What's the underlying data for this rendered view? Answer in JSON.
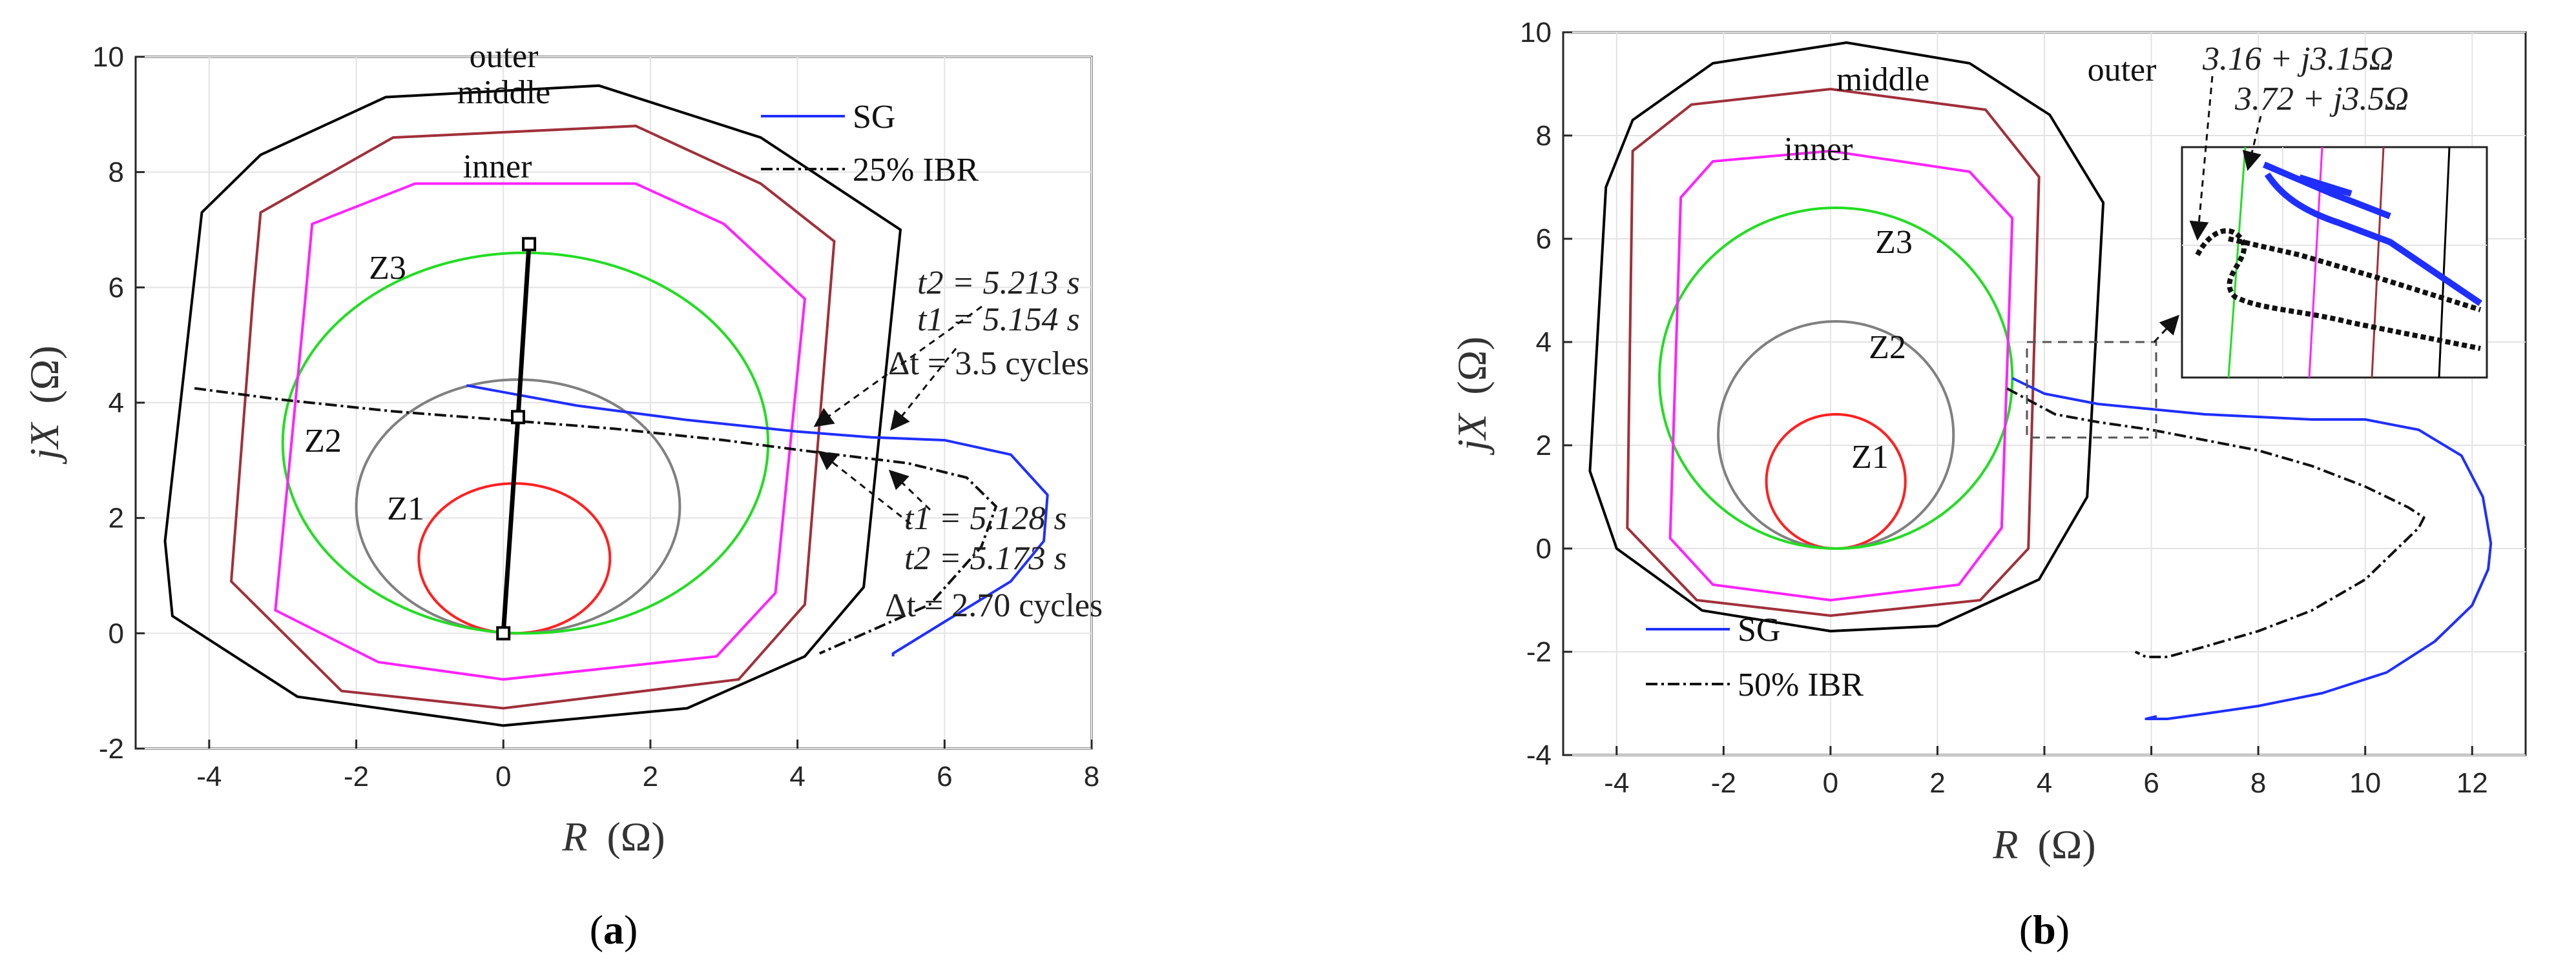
{
  "chart_data": [
    {
      "id": "a",
      "type": "line",
      "caption_letter": "a",
      "xlabel_var": "R",
      "xlabel_unit": "(Ω)",
      "ylabel_var": "jX",
      "ylabel_unit": "(Ω)",
      "xlim": [
        -5,
        8
      ],
      "ylim": [
        -2,
        10
      ],
      "xticks": [
        -4,
        -2,
        0,
        2,
        4,
        6,
        8
      ],
      "yticks": [
        -2,
        0,
        2,
        4,
        6,
        8,
        10
      ],
      "grid": true,
      "legend": {
        "position": "top-right",
        "entries": [
          {
            "label": "SG",
            "color": "#1f2fff",
            "style": "solid"
          },
          {
            "label": "25% IBR",
            "color": "#111111",
            "style": "dashdot"
          }
        ]
      },
      "zones": [
        {
          "name": "Z1",
          "type": "circle",
          "center": [
            0.15,
            1.3
          ],
          "radius": 1.3,
          "color": "#ff2020"
        },
        {
          "name": "Z2",
          "type": "circle",
          "center": [
            0.2,
            2.2
          ],
          "radius": 2.2,
          "color": "#808080"
        },
        {
          "name": "Z3",
          "type": "circle",
          "center": [
            0.3,
            3.3
          ],
          "radius": 3.3,
          "color": "#22dd22"
        },
        {
          "name": "inner",
          "type": "quad",
          "color": "#ff22ff",
          "points": [
            [
              -2.7,
              5.7
            ],
            [
              -2.6,
              7.1
            ],
            [
              -1.2,
              7.8
            ],
            [
              1.8,
              7.8
            ],
            [
              3.0,
              7.1
            ],
            [
              4.1,
              5.8
            ],
            [
              3.7,
              0.7
            ],
            [
              2.9,
              -0.4
            ],
            [
              0,
              -0.8
            ],
            [
              -1.7,
              -0.5
            ],
            [
              -3.1,
              0.4
            ]
          ]
        },
        {
          "name": "middle",
          "type": "quad",
          "color": "#a0303a",
          "points": [
            [
              -3.4,
              5.9
            ],
            [
              -3.3,
              7.3
            ],
            [
              -1.5,
              8.6
            ],
            [
              1.8,
              8.8
            ],
            [
              3.5,
              7.8
            ],
            [
              4.5,
              6.8
            ],
            [
              4.1,
              0.5
            ],
            [
              3.2,
              -0.8
            ],
            [
              0,
              -1.3
            ],
            [
              -2.2,
              -1.0
            ],
            [
              -3.7,
              0.9
            ]
          ]
        },
        {
          "name": "outer",
          "type": "quad",
          "color": "#000000",
          "points": [
            [
              -4.1,
              7.3
            ],
            [
              -3.3,
              8.3
            ],
            [
              -1.6,
              9.3
            ],
            [
              1.3,
              9.5
            ],
            [
              3.5,
              8.6
            ],
            [
              5.4,
              7.0
            ],
            [
              4.9,
              0.8
            ],
            [
              4.1,
              -0.4
            ],
            [
              2.5,
              -1.3
            ],
            [
              0,
              -1.6
            ],
            [
              -2.8,
              -1.1
            ],
            [
              -4.5,
              0.3
            ],
            [
              -4.6,
              1.6
            ]
          ]
        }
      ],
      "series": [
        {
          "name": "SG",
          "color": "#1f2fff",
          "style": "solid",
          "x": [
            -0.5,
            1.0,
            2.5,
            4.0,
            5.0,
            6.0,
            6.9,
            7.4,
            7.35,
            6.9,
            6.0,
            5.3,
            5.3
          ],
          "y": [
            4.3,
            3.95,
            3.7,
            3.5,
            3.4,
            3.35,
            3.1,
            2.4,
            1.6,
            0.9,
            0.2,
            -0.35,
            -0.4
          ]
        },
        {
          "name": "25% IBR",
          "color": "#111111",
          "style": "dashdot",
          "x": [
            -4.2,
            -3.0,
            -1.5,
            0.0,
            1.5,
            3.0,
            4.2,
            5.5,
            6.3,
            6.7,
            6.5,
            5.8,
            4.3
          ],
          "y": [
            4.25,
            4.05,
            3.85,
            3.7,
            3.55,
            3.35,
            3.15,
            2.95,
            2.7,
            2.2,
            1.5,
            0.5,
            -0.35
          ]
        },
        {
          "name": "relay characteristic line",
          "color": "#000000",
          "style": "solid-bold",
          "x": [
            0.0,
            0.2,
            0.35
          ],
          "y": [
            0.0,
            3.75,
            6.75
          ]
        }
      ],
      "annotations": [
        {
          "lines": [
            "t2 = 5.213 s",
            "t1 = 5.154 s",
            "Δt = 3.5 cycles"
          ]
        },
        {
          "lines": [
            "t1 = 5.128 s",
            "t2 = 5.173 s",
            "Δt = 2.70 cycles"
          ]
        }
      ],
      "zone_labels": [
        "outer",
        "middle",
        "inner",
        "Z3",
        "Z2",
        "Z1"
      ]
    },
    {
      "id": "b",
      "type": "line",
      "caption_letter": "b",
      "xlabel_var": "R",
      "xlabel_unit": "(Ω)",
      "ylabel_var": "jX",
      "ylabel_unit": "(Ω)",
      "xlim": [
        -5,
        13
      ],
      "ylim": [
        -4,
        10
      ],
      "xticks": [
        -4,
        -2,
        0,
        2,
        4,
        6,
        8,
        10,
        12
      ],
      "yticks": [
        -4,
        -2,
        0,
        2,
        4,
        6,
        8,
        10
      ],
      "grid": true,
      "legend": {
        "position": "bottom-left",
        "entries": [
          {
            "label": "SG",
            "color": "#1f2fff",
            "style": "solid"
          },
          {
            "label": "50% IBR",
            "color": "#111111",
            "style": "dashdot"
          }
        ]
      },
      "zones": [
        {
          "name": "Z1",
          "type": "circle",
          "center": [
            0.1,
            1.3
          ],
          "radius": 1.3,
          "color": "#ff2020"
        },
        {
          "name": "Z2",
          "type": "circle",
          "center": [
            0.1,
            2.2
          ],
          "radius": 2.2,
          "color": "#808080"
        },
        {
          "name": "Z3",
          "type": "circle",
          "center": [
            0.1,
            3.3
          ],
          "radius": 3.3,
          "color": "#22dd22"
        },
        {
          "name": "inner",
          "type": "quad",
          "color": "#ff22ff",
          "points": [
            [
              -2.8,
              6.8
            ],
            [
              -2.2,
              7.5
            ],
            [
              0,
              7.7
            ],
            [
              2.6,
              7.3
            ],
            [
              3.4,
              6.4
            ],
            [
              3.2,
              0.4
            ],
            [
              2.4,
              -0.7
            ],
            [
              0,
              -1.0
            ],
            [
              -2.2,
              -0.7
            ],
            [
              -3.0,
              0.2
            ]
          ]
        },
        {
          "name": "middle",
          "type": "quad",
          "color": "#a0303a",
          "points": [
            [
              -3.7,
              7.7
            ],
            [
              -2.6,
              8.6
            ],
            [
              0,
              8.9
            ],
            [
              2.9,
              8.5
            ],
            [
              3.9,
              7.2
            ],
            [
              3.7,
              0.0
            ],
            [
              2.8,
              -1.0
            ],
            [
              0,
              -1.3
            ],
            [
              -2.5,
              -1.0
            ],
            [
              -3.8,
              0.4
            ]
          ]
        },
        {
          "name": "outer",
          "type": "quad",
          "color": "#000000",
          "points": [
            [
              -4.2,
              7.0
            ],
            [
              -3.7,
              8.3
            ],
            [
              -2.2,
              9.4
            ],
            [
              0.3,
              9.8
            ],
            [
              2.6,
              9.4
            ],
            [
              4.1,
              8.4
            ],
            [
              5.1,
              6.7
            ],
            [
              4.8,
              1.0
            ],
            [
              3.9,
              -0.6
            ],
            [
              2.0,
              -1.5
            ],
            [
              0,
              -1.6
            ],
            [
              -2.4,
              -1.2
            ],
            [
              -4.0,
              0.0
            ],
            [
              -4.5,
              1.5
            ]
          ]
        }
      ],
      "series": [
        {
          "name": "SG",
          "color": "#1f2fff",
          "style": "solid",
          "x": [
            3.4,
            4.0,
            5.0,
            6.0,
            7.0,
            8.0,
            9.0,
            10.0,
            11.0,
            11.8,
            12.2,
            12.35,
            12.3,
            12.0,
            11.3,
            10.4,
            9.2,
            8.0,
            7.0,
            6.3,
            5.9,
            6.1
          ],
          "y": [
            3.3,
            3.0,
            2.8,
            2.7,
            2.6,
            2.55,
            2.5,
            2.5,
            2.3,
            1.8,
            1.0,
            0.1,
            -0.4,
            -1.1,
            -1.8,
            -2.4,
            -2.8,
            -3.05,
            -3.2,
            -3.3,
            -3.3,
            -3.25
          ]
        },
        {
          "name": "50% IBR",
          "color": "#111111",
          "style": "dashdot",
          "x": [
            3.3,
            4.2,
            5.0,
            6.0,
            7.0,
            8.0,
            9.0,
            10.0,
            10.8,
            11.1,
            11.0,
            10.6,
            10.0,
            9.0,
            8.0,
            7.0,
            6.3,
            5.9,
            5.7
          ],
          "y": [
            3.1,
            2.6,
            2.45,
            2.3,
            2.1,
            1.9,
            1.6,
            1.2,
            0.8,
            0.6,
            0.4,
            0.0,
            -0.6,
            -1.2,
            -1.6,
            -1.9,
            -2.1,
            -2.1,
            -2.0
          ]
        }
      ],
      "annotations": [
        {
          "lines": [
            "3.16 + j3.15Ω"
          ]
        },
        {
          "lines": [
            "3.72 + j3.5Ω"
          ]
        }
      ],
      "zone_labels": [
        "outer",
        "middle",
        "inner",
        "Z3",
        "Z2",
        "Z1"
      ]
    }
  ]
}
